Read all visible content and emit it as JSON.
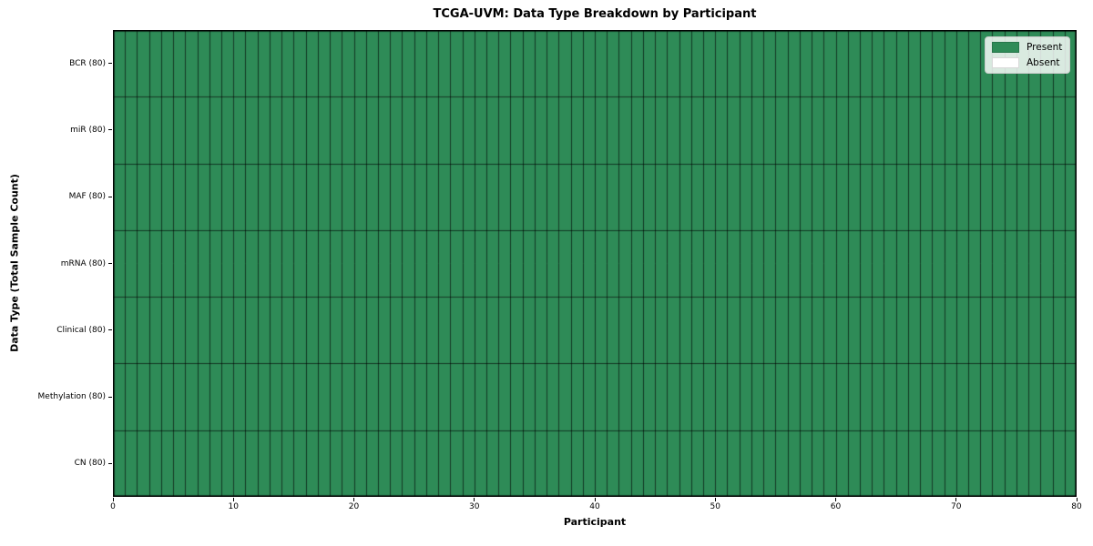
{
  "title": "TCGA-UVM: Data Type Breakdown by Participant",
  "axes": {
    "xlabel": "Participant",
    "ylabel": "Data Type (Total Sample Count)"
  },
  "legend": {
    "items": [
      {
        "label": "Present",
        "color": "#2E8B57"
      },
      {
        "label": "Absent",
        "color": "#FFFFFF"
      }
    ]
  },
  "colors": {
    "present": "#2E8B57",
    "absent": "#FFFFFF",
    "cell_edge": "rgba(0,0,0,0.6)",
    "spine": "#000000",
    "figure_background": "#FFFFFF"
  },
  "chart_data": {
    "type": "heatmap",
    "title": "TCGA-UVM: Data Type Breakdown by Participant",
    "xlabel": "Participant",
    "ylabel": "Data Type (Total Sample Count)",
    "x_range": [
      0,
      80
    ],
    "x_ticks": [
      0,
      10,
      20,
      30,
      40,
      50,
      60,
      70,
      80
    ],
    "n_participants": 80,
    "rows": [
      {
        "label": "BCR (80)",
        "present_count": 80,
        "total": 80
      },
      {
        "label": "miR (80)",
        "present_count": 80,
        "total": 80
      },
      {
        "label": "MAF (80)",
        "present_count": 80,
        "total": 80
      },
      {
        "label": "mRNA (80)",
        "present_count": 80,
        "total": 80
      },
      {
        "label": "Clinical (80)",
        "present_count": 80,
        "total": 80
      },
      {
        "label": "Methylation (80)",
        "present_count": 80,
        "total": 80
      },
      {
        "label": "CN (80)",
        "present_count": 80,
        "total": 80
      }
    ],
    "value_legend": {
      "1": "Present",
      "0": "Absent"
    },
    "legend_position": "upper right",
    "grid": "cell-borders"
  }
}
